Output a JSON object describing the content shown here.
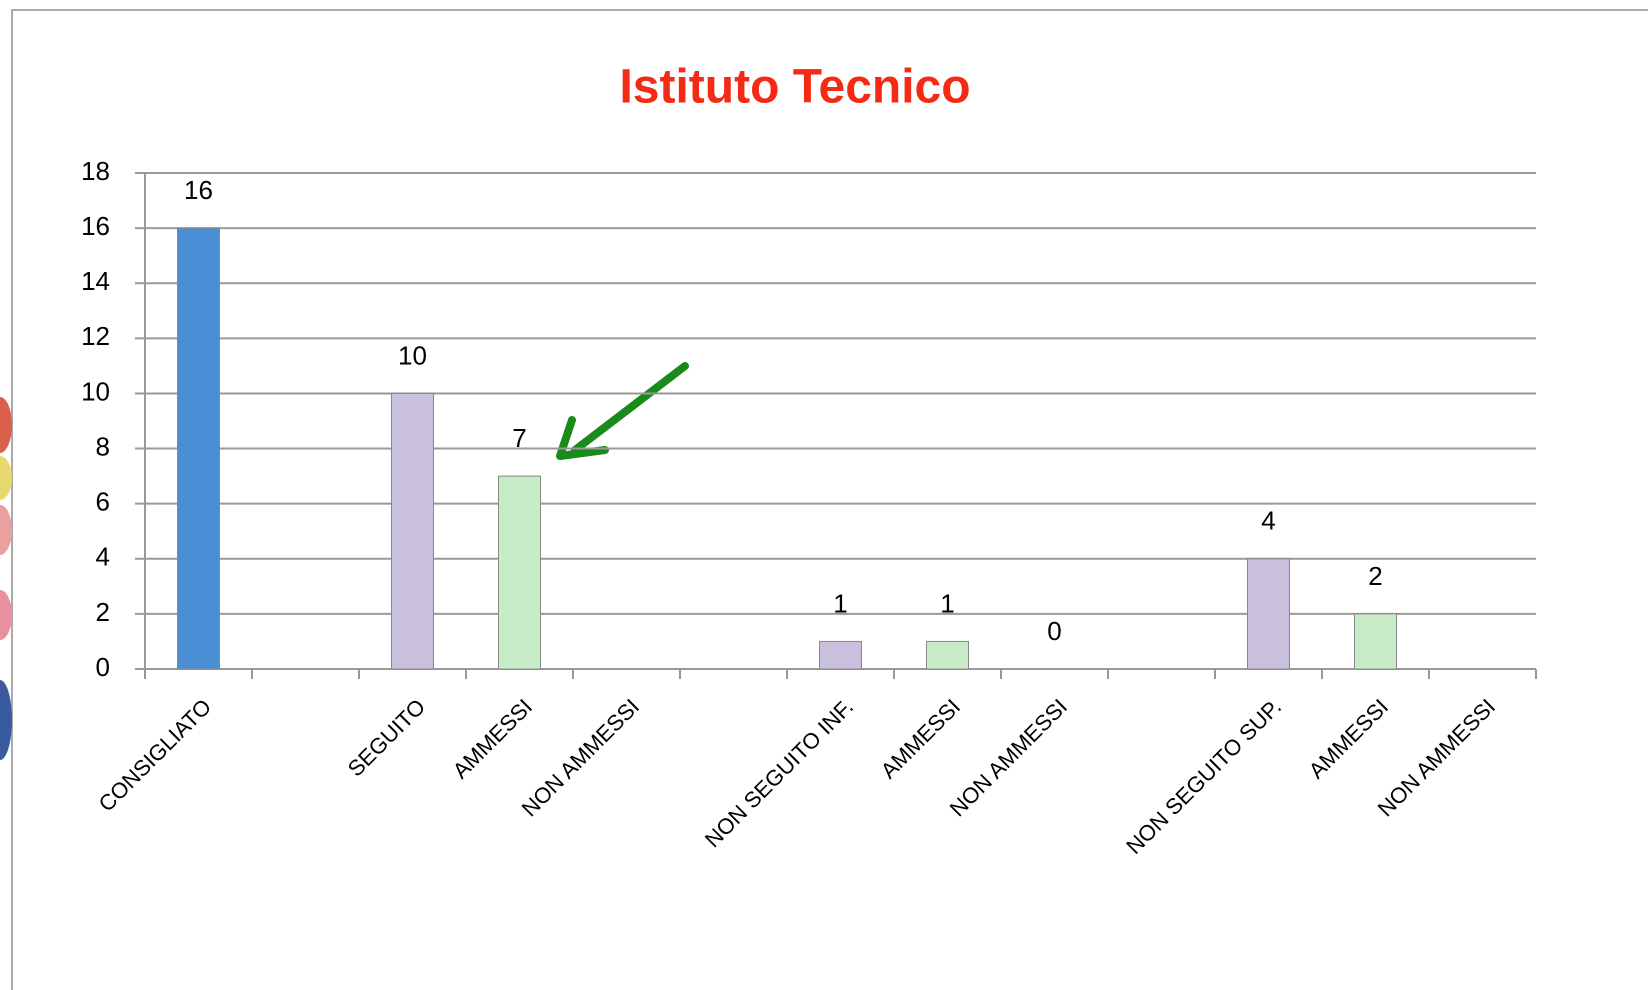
{
  "chart_data": {
    "type": "bar",
    "title": "Istituto Tecnico",
    "categories": [
      "CONSIGLIATO",
      null,
      "SEGUITO",
      "AMMESSI",
      "NON AMMESSI",
      null,
      "NON SEGUITO INF.",
      "AMMESSI",
      "NON AMMESSI",
      null,
      "NON SEGUITO SUP.",
      "AMMESSI",
      "NON AMMESSI"
    ],
    "values": [
      16,
      null,
      10,
      7,
      null,
      null,
      1,
      1,
      0,
      null,
      4,
      2,
      null
    ],
    "colors": [
      "#4a8fd6",
      null,
      "#c8c0dc",
      "#c8ecc8",
      null,
      null,
      "#c8c0dc",
      "#c8ecc8",
      "#c8ecc8",
      null,
      "#c8c0dc",
      "#c8ecc8",
      null
    ],
    "ylim": [
      0,
      18
    ],
    "yticks": [
      0,
      2,
      4,
      6,
      8,
      10,
      12,
      14,
      16,
      18
    ],
    "grid": true
  }
}
